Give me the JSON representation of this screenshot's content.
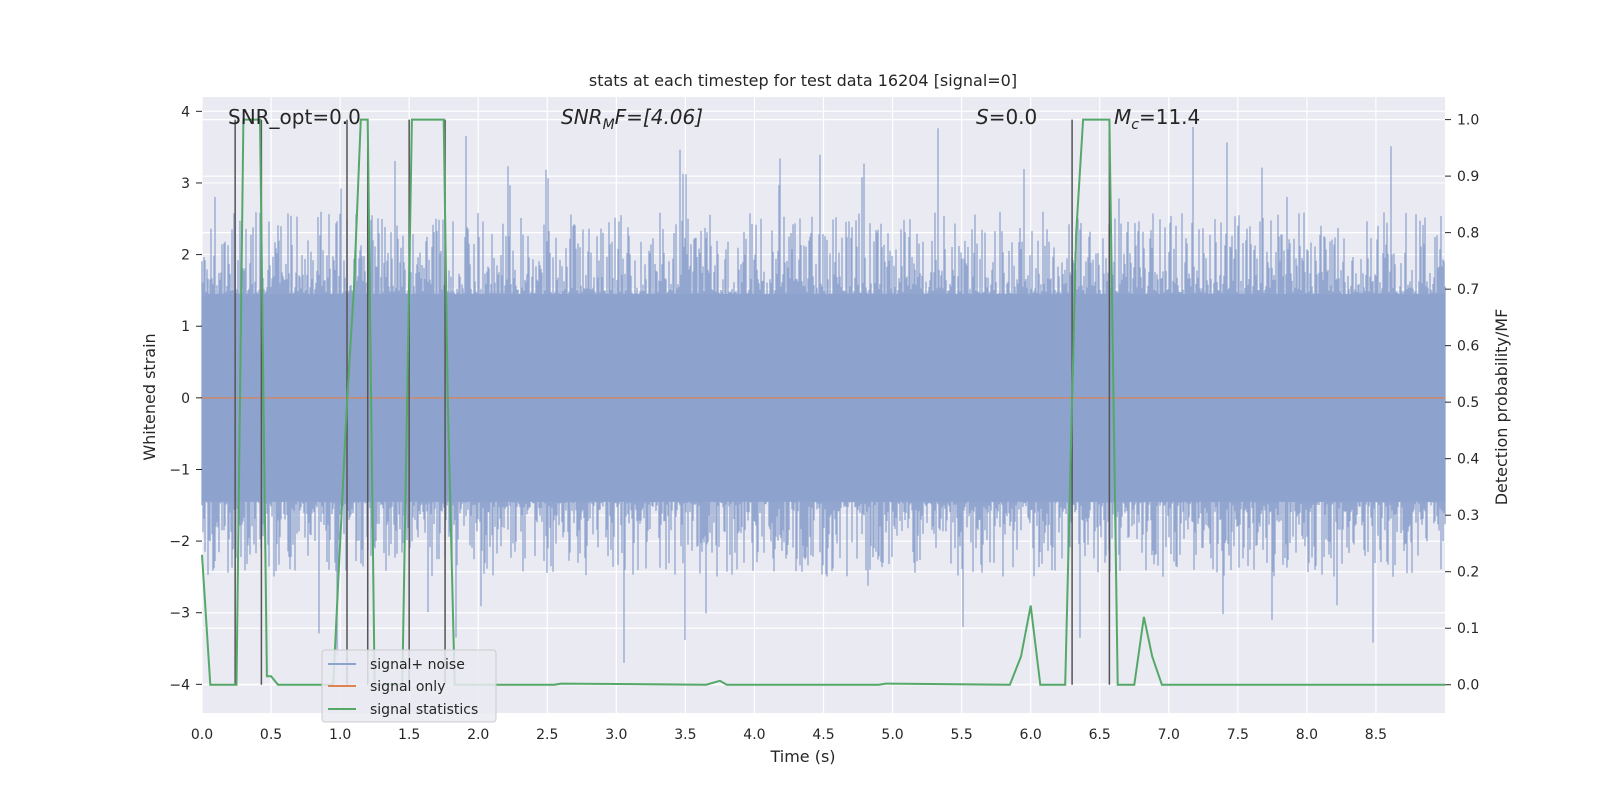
{
  "chart_data": {
    "type": "line",
    "title": "stats at each timestep for test data 16204 [signal=0]",
    "xlabel": "Time (s)",
    "ylabel": "Whitened strain",
    "y2label": "Detection probability/MF",
    "xlim": [
      0.0,
      9.0
    ],
    "ylim": [
      -4.4,
      4.2
    ],
    "y2lim": [
      -0.05,
      1.04
    ],
    "xticks": [
      "0.0",
      "0.5",
      "1.0",
      "1.5",
      "2.0",
      "2.5",
      "3.0",
      "3.5",
      "4.0",
      "4.5",
      "5.0",
      "5.5",
      "6.0",
      "6.5",
      "7.0",
      "7.5",
      "8.0",
      "8.5"
    ],
    "yticks": [
      "4",
      "3",
      "2",
      "1",
      "0",
      "−1",
      "−2",
      "−3",
      "−4"
    ],
    "y2ticks": [
      "1.0",
      "0.9",
      "0.8",
      "0.7",
      "0.6",
      "0.5",
      "0.4",
      "0.3",
      "0.2",
      "0.1",
      "0.0"
    ],
    "grid": true,
    "legend_position": "lower-left",
    "colors": {
      "noise": "#8da2cc",
      "signal": "#dd8452",
      "stats": "#55a868",
      "vlines": "#555555",
      "background": "#eaeaf2",
      "grid": "#ffffff"
    },
    "annotations": {
      "snr_opt": "SNR_opt=0.0",
      "snr_mf_main": "SNR",
      "snr_mf_sub": "M",
      "snr_mf_rest": "F=[4.06]",
      "s_label": "S",
      "s_rest": "=0.0",
      "mc_label": "M",
      "mc_sub": "c",
      "mc_rest": "=11.4"
    },
    "series": [
      {
        "name": "signal+ noise",
        "kind": "noise",
        "band": [
          -1.45,
          1.45
        ],
        "typical_peak": [
          -2.5,
          2.6
        ],
        "extremes": [
          -3.85,
          3.85
        ]
      },
      {
        "name": "signal only",
        "kind": "flat",
        "value": 0.0
      },
      {
        "name": "signal statistics",
        "kind": "probability",
        "x": [
          0.0,
          0.06,
          0.25,
          0.3,
          0.42,
          0.47,
          0.5,
          0.55,
          0.95,
          1.05,
          1.1,
          1.15,
          1.2,
          1.25,
          1.45,
          1.52,
          1.57,
          1.75,
          1.78,
          1.83,
          2.55,
          2.6,
          3.65,
          3.75,
          3.8,
          4.9,
          4.95,
          5.85,
          5.93,
          6.0,
          6.07,
          6.25,
          6.33,
          6.38,
          6.57,
          6.63,
          6.7,
          6.75,
          6.82,
          6.88,
          6.95,
          9.0
        ],
        "y": [
          0.23,
          0.0,
          0.0,
          1.0,
          1.0,
          0.015,
          0.015,
          0.0,
          0.0,
          0.5,
          0.7,
          1.0,
          1.0,
          0.0,
          0.0,
          1.0,
          1.0,
          1.0,
          0.5,
          0.0,
          0.0,
          0.002,
          0.0,
          0.007,
          0.0,
          0.0,
          0.002,
          0.0,
          0.05,
          0.14,
          0.0,
          0.0,
          0.8,
          1.0,
          1.0,
          0.0,
          0.0,
          0.0,
          0.12,
          0.05,
          0.0,
          0.0
        ]
      }
    ],
    "vlines": [
      0.24,
      0.43,
      1.05,
      1.2,
      1.5,
      1.76,
      6.3,
      6.57
    ]
  }
}
